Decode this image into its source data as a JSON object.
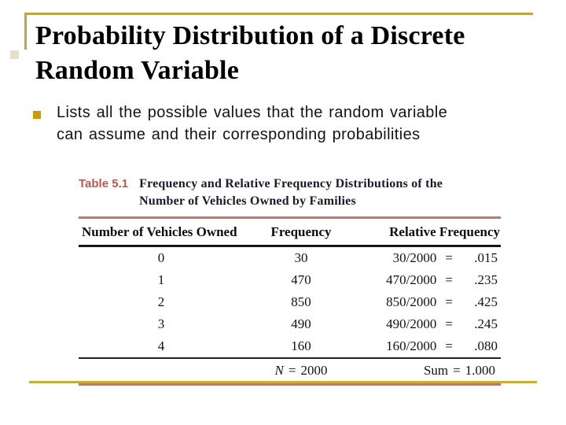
{
  "slide": {
    "title": "Probability Distribution of a Discrete Random Variable",
    "bullet": "Lists all the possible values that the random variable can assume and their corresponding probabilities"
  },
  "table": {
    "label": "Table 5.1",
    "caption": "Frequency and Relative Frequency Distributions of the Number of Vehicles Owned by Families",
    "columns": [
      "Number of Vehicles Owned",
      "Frequency",
      "Relative Frequency"
    ],
    "eq": "=",
    "rows": [
      {
        "vehicles": "0",
        "frequency": "30",
        "rel_expr": "30/2000",
        "rel_value": ".015"
      },
      {
        "vehicles": "1",
        "frequency": "470",
        "rel_expr": "470/2000",
        "rel_value": ".235"
      },
      {
        "vehicles": "2",
        "frequency": "850",
        "rel_expr": "850/2000",
        "rel_value": ".425"
      },
      {
        "vehicles": "3",
        "frequency": "490",
        "rel_expr": "490/2000",
        "rel_value": ".245"
      },
      {
        "vehicles": "4",
        "frequency": "160",
        "rel_expr": "160/2000",
        "rel_value": ".080"
      }
    ],
    "summary": {
      "n_symbol": "N",
      "n_value": "2000",
      "sum_label": "Sum",
      "sum_value": "1.000"
    }
  },
  "colors": {
    "frame_gold": "#C2A33C",
    "bullet_gold": "#CC9A00",
    "table_label_accent": "#C25749",
    "table_rule_orange": "#BD7966",
    "caption_ink": "#1A1A2E"
  }
}
